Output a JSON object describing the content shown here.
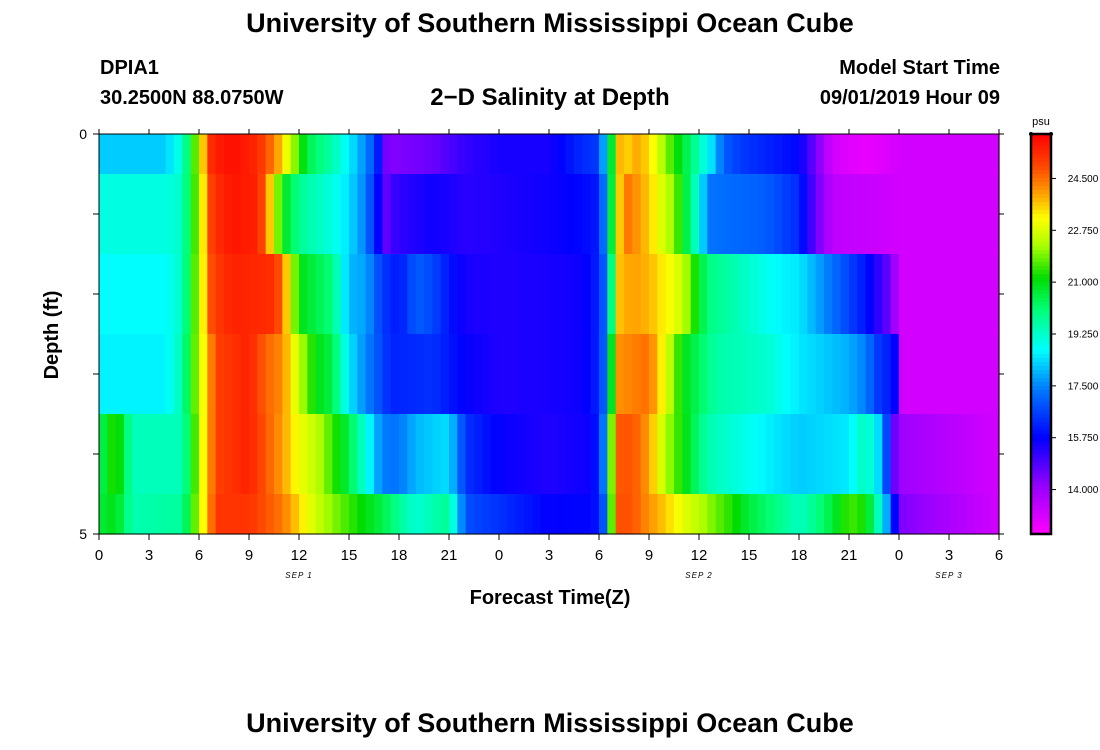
{
  "header": {
    "title_top": "University of Southern Mississippi Ocean Cube",
    "title_bottom": "University of Southern Mississippi Ocean Cube",
    "station_id": "DPIA1",
    "station_coords": "30.2500N 88.0750W",
    "plot_title": "2−D Salinity at Depth",
    "model_start_label": "Model Start Time",
    "model_start_value": "09/01/2019 Hour 09"
  },
  "chart_data": {
    "type": "heatmap",
    "title": "2−D Salinity at Depth",
    "xlabel": "Forecast Time(Z)",
    "ylabel": "Depth (ft)",
    "x_ticks": [
      "0",
      "3",
      "6",
      "9",
      "12",
      "15",
      "18",
      "21",
      "0",
      "3",
      "6",
      "9",
      "12",
      "15",
      "18",
      "21",
      "0",
      "3",
      "6"
    ],
    "y_ticks": [
      "0",
      "5"
    ],
    "ylim": [
      0,
      5
    ],
    "xlim_hours": [
      0,
      54
    ],
    "day_labels": [
      {
        "text": "SEP 1",
        "hour": 12
      },
      {
        "text": "SEP 2",
        "hour": 36
      },
      {
        "text": "SEP 3",
        "hour": 51
      }
    ],
    "colorbar": {
      "unit": "psu",
      "range": [
        12.5,
        26.0
      ],
      "ticks": [
        "24.500",
        "22.750",
        "21.000",
        "19.250",
        "17.500",
        "15.750",
        "14.000"
      ],
      "tick_values": [
        24.5,
        22.75,
        21.0,
        19.25,
        17.5,
        15.75,
        14.0
      ]
    },
    "depth_bands": [
      0,
      0.5,
      1.5,
      2.5,
      3.5,
      4.5,
      5.0
    ],
    "layers": [
      {
        "h": [
          0,
          4,
          5,
          5.6,
          6,
          6.8,
          8,
          9.5,
          10.6,
          11.5,
          12.5,
          14,
          15,
          16,
          16.6,
          17.3,
          20,
          22,
          24,
          27,
          29,
          30,
          30.3,
          30.8,
          31,
          31.4,
          32,
          33,
          34,
          35.6,
          36.7,
          37.5,
          38.5,
          40,
          42,
          43,
          44,
          46,
          48,
          54
        ],
        "v": [
          18.2,
          18.2,
          19.2,
          21,
          22.8,
          25.5,
          25.8,
          25.4,
          24.2,
          22.5,
          20.5,
          19.5,
          18.6,
          17.5,
          16.6,
          14.3,
          14.6,
          15.2,
          15.5,
          15.5,
          16.3,
          16.5,
          18,
          21,
          25,
          23,
          24,
          23.5,
          22,
          20,
          18.5,
          17,
          16.5,
          16.2,
          15.8,
          14.5,
          13.2,
          12.8,
          13.2,
          13.2
        ]
      },
      {
        "h": [
          0,
          4,
          5,
          5.6,
          6,
          6.8,
          8,
          9.5,
          10,
          11,
          12,
          14,
          15,
          16,
          17.3,
          17.8,
          20,
          22,
          24,
          27,
          29,
          30,
          30.4,
          30.8,
          31.4,
          32,
          33,
          34.5,
          35.6,
          36.6,
          40,
          42,
          43,
          44,
          47,
          48,
          54
        ],
        "v": [
          19,
          19,
          19.3,
          21,
          22.5,
          25.2,
          25.7,
          25.5,
          24.5,
          21,
          19.8,
          19,
          18.4,
          17.4,
          14.6,
          15.2,
          15.6,
          15.3,
          15.4,
          15.6,
          15.8,
          16.1,
          17.8,
          21,
          24.5,
          24.3,
          23.6,
          22,
          19.8,
          17.3,
          17,
          16.3,
          14.6,
          13.5,
          13.3,
          13.2,
          13.2
        ]
      },
      {
        "h": [
          0,
          4,
          5,
          5.6,
          6,
          6.8,
          8,
          10.5,
          11,
          12,
          13,
          14,
          15,
          16,
          17,
          18,
          19,
          20,
          21,
          22,
          24,
          27,
          29,
          30,
          30.6,
          31,
          32,
          33,
          35,
          36.5,
          40,
          41,
          42,
          46,
          47,
          47.6,
          48,
          54
        ],
        "v": [
          18.7,
          18.7,
          19.3,
          21.2,
          22.5,
          25,
          25.5,
          25.3,
          24.5,
          21,
          20.5,
          20,
          18,
          17.8,
          16.5,
          16,
          17,
          16.7,
          16,
          15.5,
          15.4,
          15.5,
          15.6,
          16.2,
          17.8,
          23.6,
          24,
          23.8,
          22.6,
          20,
          18.9,
          18.6,
          18.5,
          16,
          15,
          14.4,
          13.2,
          13.2
        ]
      },
      {
        "h": [
          0,
          4,
          5,
          5.6,
          6,
          7,
          9,
          10,
          11,
          12,
          13,
          14,
          15,
          16,
          16.5,
          17.5,
          19,
          20,
          22,
          24,
          27,
          29,
          30,
          30.5,
          31,
          33,
          34,
          35,
          37,
          40,
          42,
          45,
          46,
          47,
          47.7,
          48,
          54
        ],
        "v": [
          18.6,
          18.6,
          19.5,
          21.3,
          22.5,
          25,
          25.5,
          24.6,
          24.2,
          22.5,
          21,
          20.5,
          18.5,
          17.5,
          17.1,
          16.2,
          16.3,
          16.4,
          15.7,
          15.4,
          15.5,
          15.6,
          16.2,
          17.6,
          24.1,
          24.5,
          22.9,
          21,
          19.6,
          19.2,
          18.5,
          17.9,
          17.4,
          16.2,
          16.2,
          13.2,
          13.2
        ]
      },
      {
        "h": [
          0,
          1,
          2,
          5,
          5.6,
          6,
          7,
          9,
          11,
          12,
          13,
          14,
          15,
          16,
          17,
          18,
          19,
          20,
          21,
          22,
          24,
          27,
          29,
          29.5,
          30,
          30.4,
          31,
          32,
          33,
          34,
          35,
          36.5,
          40,
          42,
          45,
          46,
          47,
          47.6,
          48,
          54
        ],
        "v": [
          20.2,
          21.6,
          19.4,
          19.4,
          21,
          22.5,
          25,
          25.5,
          24,
          23,
          22.5,
          21.5,
          20.5,
          19,
          17.4,
          17.3,
          18,
          18.2,
          18.4,
          16.4,
          15.7,
          15.4,
          15.6,
          15.6,
          16.2,
          18,
          24.7,
          24.8,
          24,
          22.3,
          21.2,
          19.5,
          18.6,
          18.2,
          18.5,
          19.5,
          18,
          14.9,
          14,
          13.2
        ]
      },
      {
        "h": [
          0,
          1,
          2,
          5,
          5.6,
          6,
          7,
          9,
          11,
          12,
          13,
          14,
          15,
          16,
          17,
          18,
          19,
          20,
          21,
          22,
          24,
          27,
          29,
          29.5,
          30,
          30.4,
          31,
          32,
          33,
          34,
          35,
          36,
          37,
          38,
          39,
          40,
          41,
          42,
          43,
          44,
          45,
          46,
          47,
          47.6,
          48,
          54
        ],
        "v": [
          20.6,
          21,
          19.5,
          19.7,
          21.3,
          22.5,
          25.2,
          25.2,
          24.4,
          23.5,
          22.6,
          22,
          21.5,
          21,
          20.5,
          19.8,
          19.1,
          19.5,
          19.8,
          16.8,
          16.4,
          15.7,
          15.8,
          15.8,
          16,
          17.4,
          24.8,
          24.8,
          24.1,
          23.6,
          22.9,
          22.4,
          21.8,
          21.3,
          20.6,
          20.2,
          19.8,
          19.3,
          19.9,
          20.6,
          21.6,
          21.2,
          18.8,
          16.6,
          14.4,
          13.2
        ]
      }
    ]
  }
}
